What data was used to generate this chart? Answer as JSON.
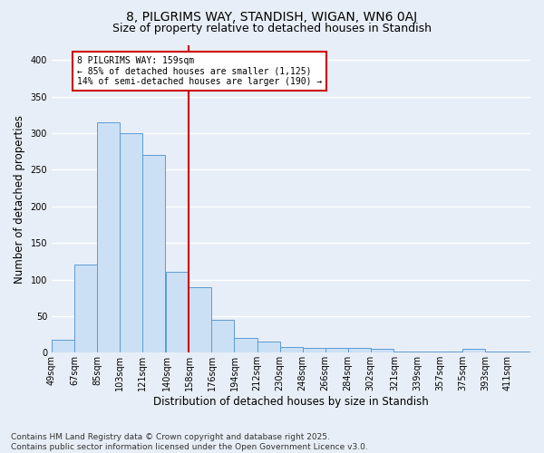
{
  "title1": "8, PILGRIMS WAY, STANDISH, WIGAN, WN6 0AJ",
  "title2": "Size of property relative to detached houses in Standish",
  "xlabel": "Distribution of detached houses by size in Standish",
  "ylabel": "Number of detached properties",
  "footnote": "Contains HM Land Registry data © Crown copyright and database right 2025.\nContains public sector information licensed under the Open Government Licence v3.0.",
  "bins": [
    49,
    67,
    85,
    103,
    121,
    140,
    158,
    176,
    194,
    212,
    230,
    248,
    266,
    284,
    302,
    321,
    339,
    357,
    375,
    393,
    411
  ],
  "bin_labels": [
    "49sqm",
    "67sqm",
    "85sqm",
    "103sqm",
    "121sqm",
    "140sqm",
    "158sqm",
    "176sqm",
    "194sqm",
    "212sqm",
    "230sqm",
    "248sqm",
    "266sqm",
    "284sqm",
    "302sqm",
    "321sqm",
    "339sqm",
    "357sqm",
    "375sqm",
    "393sqm",
    "411sqm"
  ],
  "values": [
    18,
    120,
    315,
    300,
    270,
    110,
    90,
    45,
    20,
    15,
    8,
    7,
    7,
    6,
    5,
    2,
    2,
    1,
    5,
    2,
    1
  ],
  "bar_color": "#cce0f5",
  "bar_edge_color": "#5b9bd5",
  "vertical_line_x": 158,
  "vertical_line_color": "#cc0000",
  "annotation_text": "8 PILGRIMS WAY: 159sqm\n← 85% of detached houses are smaller (1,125)\n14% of semi-detached houses are larger (190) →",
  "annotation_box_color": "#cc0000",
  "ylim": [
    0,
    420
  ],
  "yticks": [
    0,
    50,
    100,
    150,
    200,
    250,
    300,
    350,
    400
  ],
  "background_color": "#e8eef7",
  "grid_color": "#ffffff",
  "title_fontsize": 10,
  "subtitle_fontsize": 9,
  "axis_label_fontsize": 8.5,
  "tick_fontsize": 7,
  "annotation_fontsize": 7,
  "footnote_fontsize": 6.5
}
